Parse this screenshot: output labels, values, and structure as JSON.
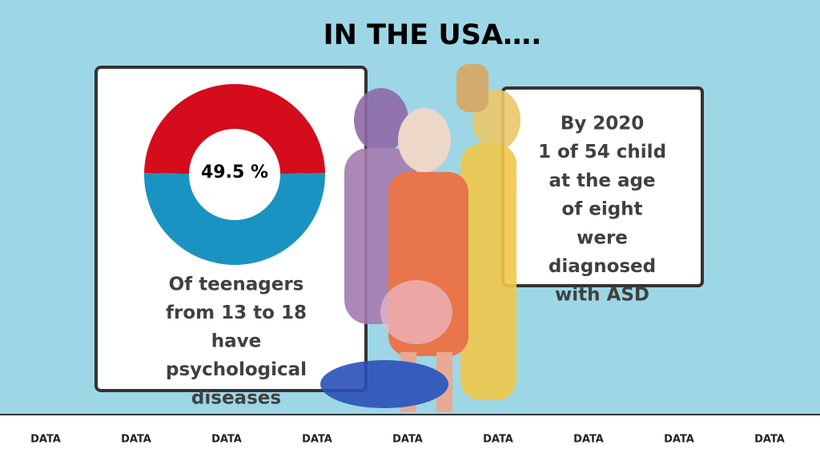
{
  "title": "IN THE USA….",
  "left_card": {
    "chart": {
      "type": "donut",
      "values": [
        49.5
      ],
      "value_labels": [
        "49.5 %"
      ],
      "colors": [
        "#d40c1c",
        "#1a93c2"
      ]
    },
    "caption": [
      "Of teenagers",
      "from 13 to 18",
      "have",
      "psychological",
      "diseases"
    ]
  },
  "right_card": {
    "lines": [
      "By 2020",
      "1 of 54 child",
      "at the age",
      "of eight",
      "were",
      "diagnosed",
      "with ASD"
    ]
  },
  "footer": {
    "items": [
      "DATA",
      "DATA",
      "DATA",
      "DATA",
      "DATA",
      "DATA",
      "DATA",
      "DATA",
      "DATA"
    ]
  }
}
